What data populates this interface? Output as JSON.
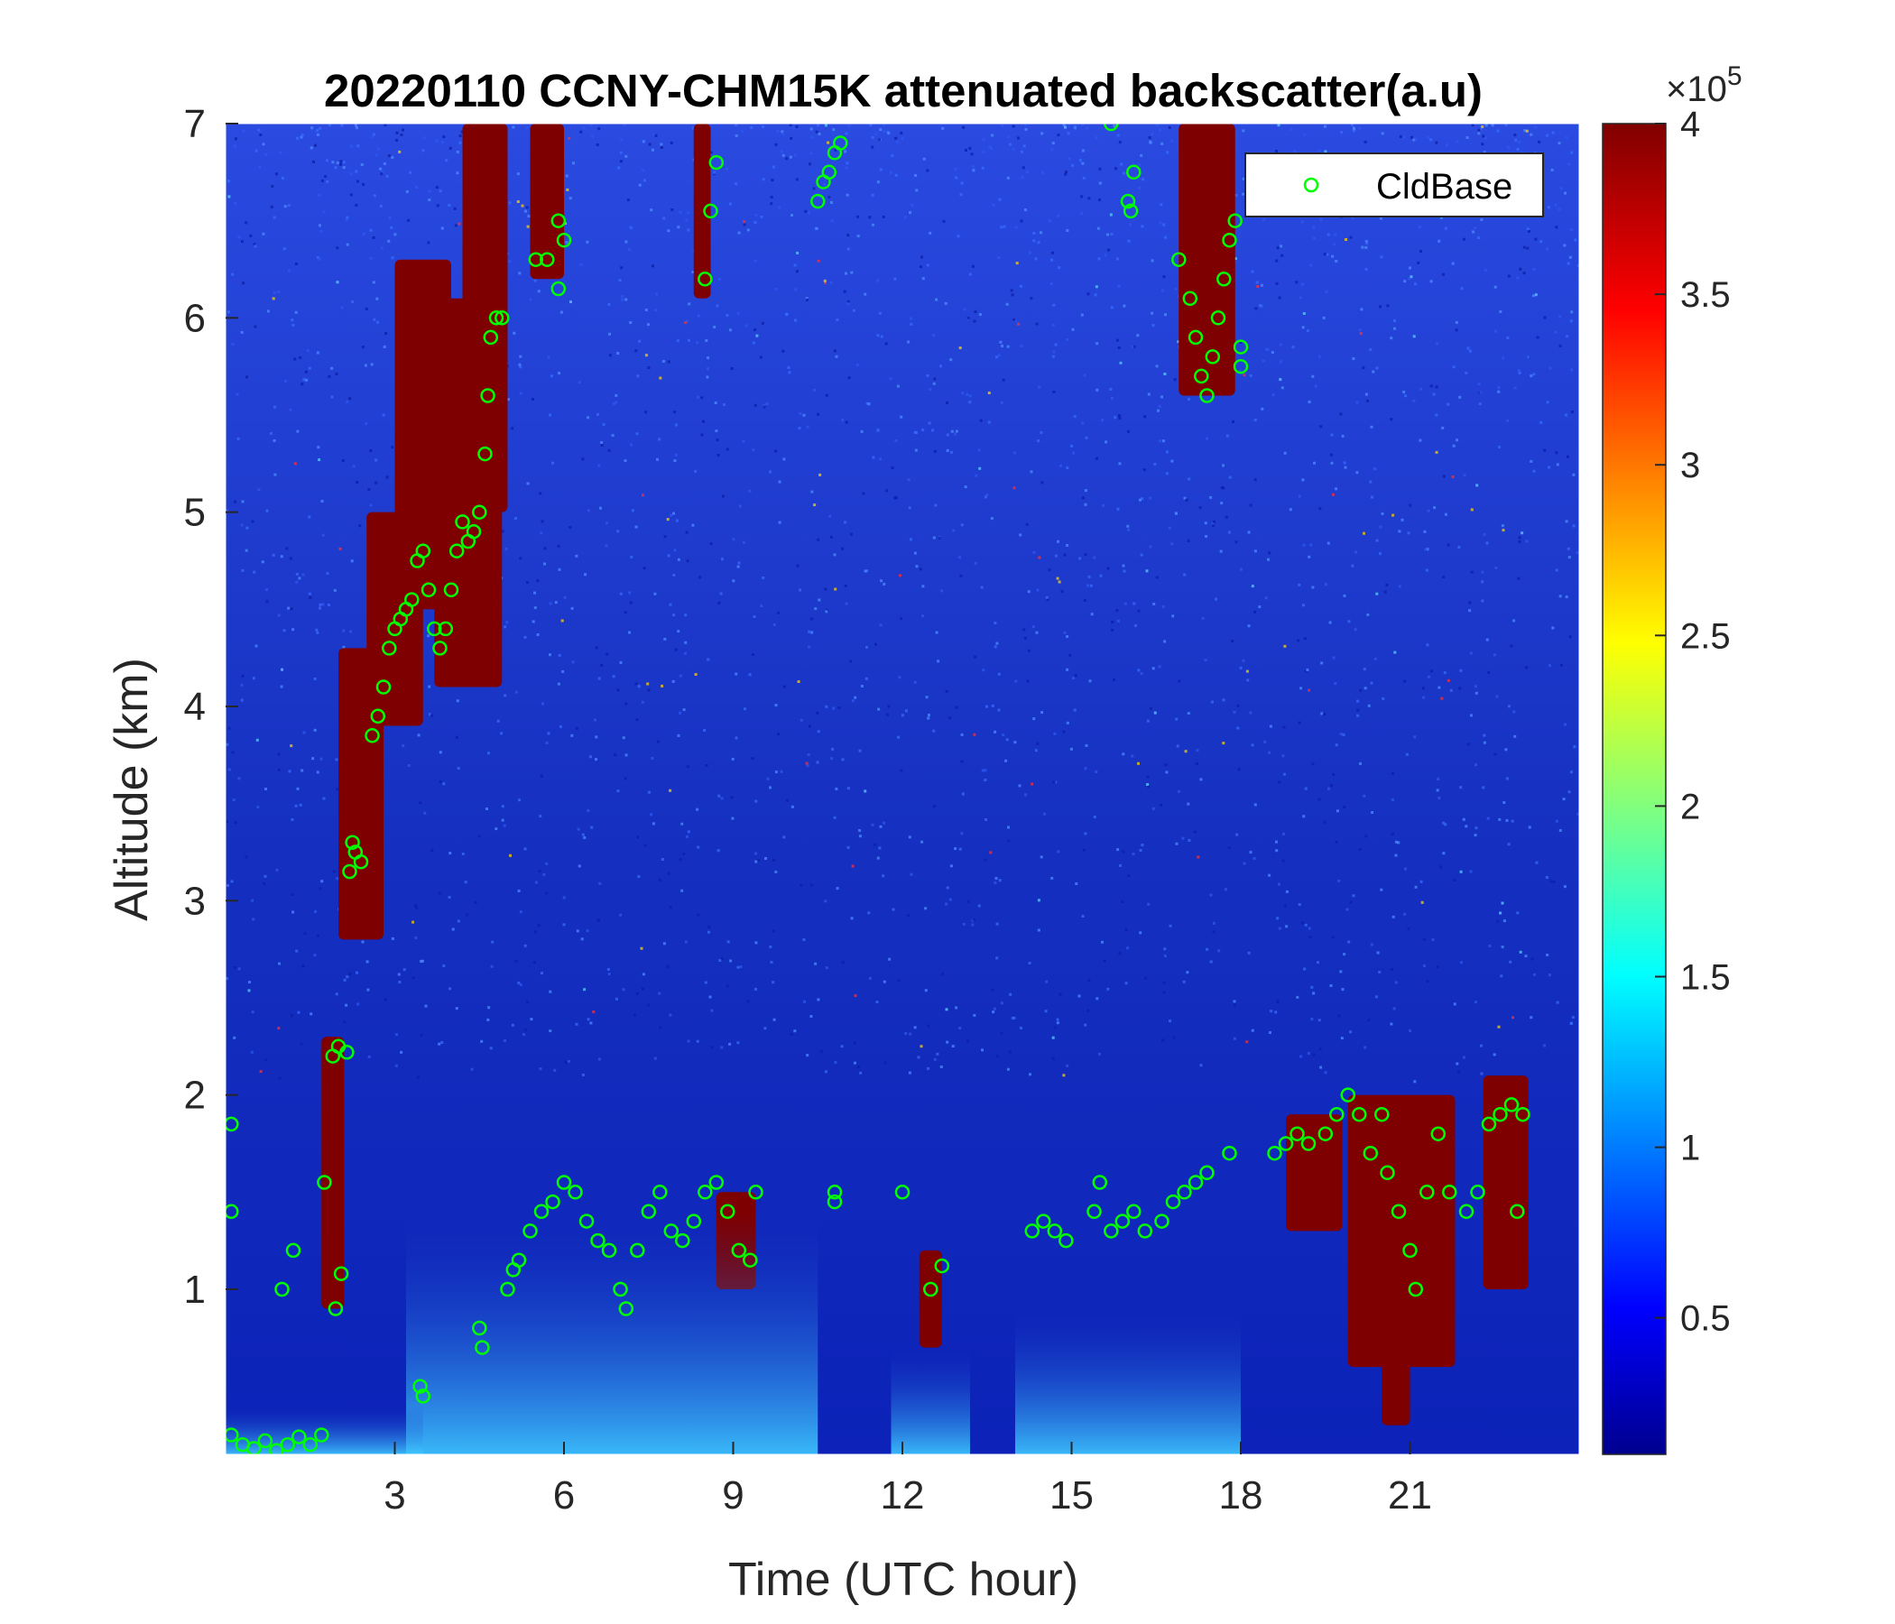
{
  "chart_data": {
    "type": "heatmap",
    "title": "20220110 CCNY-CHM15K attenuated backscatter(a.u)",
    "xlabel": "Time (UTC hour)",
    "ylabel": "Altitude (km)",
    "xlim": [
      0,
      24
    ],
    "ylim": [
      0.15,
      7
    ],
    "xticks": [
      3,
      6,
      9,
      12,
      15,
      18,
      21
    ],
    "yticks": [
      1,
      2,
      3,
      4,
      5,
      6,
      7
    ],
    "colorbar": {
      "colormap": "jet",
      "clim": [
        0.1,
        4
      ],
      "ticks": [
        "0.5",
        "1",
        "1.5",
        "2",
        "2.5",
        "3",
        "3.5",
        "4"
      ],
      "tick_values": [
        0.5,
        1,
        1.5,
        2,
        2.5,
        3,
        3.5,
        4
      ],
      "exponent_base": "×10",
      "exponent_power": "5"
    },
    "background_color": "#1530c0",
    "cloud_color": "#7f0000",
    "cloud_regions": [
      {
        "t0": 2.0,
        "t1": 2.8,
        "z0": 2.8,
        "z1": 4.3
      },
      {
        "t0": 2.5,
        "t1": 3.5,
        "z0": 3.9,
        "z1": 5.0
      },
      {
        "t0": 3.0,
        "t1": 4.0,
        "z0": 4.5,
        "z1": 6.3
      },
      {
        "t0": 3.7,
        "t1": 4.9,
        "z0": 4.1,
        "z1": 6.1
      },
      {
        "t0": 4.2,
        "t1": 5.0,
        "z0": 5.0,
        "z1": 7.0
      },
      {
        "t0": 5.4,
        "t1": 6.0,
        "z0": 6.2,
        "z1": 7.0
      },
      {
        "t0": 8.3,
        "t1": 8.6,
        "z0": 6.1,
        "z1": 7.0
      },
      {
        "t0": 1.7,
        "t1": 2.1,
        "z0": 0.9,
        "z1": 2.3
      },
      {
        "t0": 8.7,
        "t1": 9.4,
        "z0": 1.0,
        "z1": 1.5
      },
      {
        "t0": 12.3,
        "t1": 12.7,
        "z0": 0.7,
        "z1": 1.2
      },
      {
        "t0": 16.9,
        "t1": 17.9,
        "z0": 5.6,
        "z1": 7.0
      },
      {
        "t0": 18.8,
        "t1": 19.8,
        "z0": 1.3,
        "z1": 1.9
      },
      {
        "t0": 19.9,
        "t1": 21.8,
        "z0": 0.6,
        "z1": 2.0
      },
      {
        "t0": 20.5,
        "t1": 21.0,
        "z0": 0.3,
        "z1": 1.2
      },
      {
        "t0": 22.3,
        "t1": 23.1,
        "z0": 1.0,
        "z1": 2.1
      }
    ],
    "series": [
      {
        "name": "CldBase",
        "color": "#00ff00",
        "marker": "circle",
        "points": [
          [
            0.1,
            0.25
          ],
          [
            0.3,
            0.2
          ],
          [
            0.5,
            0.18
          ],
          [
            0.7,
            0.22
          ],
          [
            0.9,
            0.17
          ],
          [
            1.1,
            0.2
          ],
          [
            1.3,
            0.24
          ],
          [
            1.5,
            0.2
          ],
          [
            1.7,
            0.25
          ],
          [
            0.1,
            1.85
          ],
          [
            0.1,
            1.4
          ],
          [
            1.0,
            1.0
          ],
          [
            1.2,
            1.2
          ],
          [
            1.75,
            1.55
          ],
          [
            1.95,
            0.9
          ],
          [
            2.05,
            1.08
          ],
          [
            1.9,
            2.2
          ],
          [
            2.0,
            2.25
          ],
          [
            2.15,
            2.22
          ],
          [
            2.2,
            3.15
          ],
          [
            2.3,
            3.25
          ],
          [
            2.4,
            3.2
          ],
          [
            2.25,
            3.3
          ],
          [
            2.6,
            3.85
          ],
          [
            2.7,
            3.95
          ],
          [
            2.8,
            4.1
          ],
          [
            2.9,
            4.3
          ],
          [
            3.0,
            4.4
          ],
          [
            3.1,
            4.45
          ],
          [
            3.2,
            4.5
          ],
          [
            3.3,
            4.55
          ],
          [
            3.4,
            4.75
          ],
          [
            3.5,
            4.8
          ],
          [
            3.6,
            4.6
          ],
          [
            3.7,
            4.4
          ],
          [
            3.8,
            4.3
          ],
          [
            3.9,
            4.4
          ],
          [
            4.0,
            4.6
          ],
          [
            4.1,
            4.8
          ],
          [
            4.2,
            4.95
          ],
          [
            4.3,
            4.85
          ],
          [
            4.4,
            4.9
          ],
          [
            4.5,
            5.0
          ],
          [
            4.6,
            5.3
          ],
          [
            4.65,
            5.6
          ],
          [
            4.7,
            5.9
          ],
          [
            4.8,
            6.0
          ],
          [
            4.9,
            6.0
          ],
          [
            5.5,
            6.3
          ],
          [
            5.7,
            6.3
          ],
          [
            5.9,
            6.15
          ],
          [
            6.0,
            6.4
          ],
          [
            5.9,
            6.5
          ],
          [
            3.45,
            0.5
          ],
          [
            3.5,
            0.45
          ],
          [
            4.5,
            0.8
          ],
          [
            4.55,
            0.7
          ],
          [
            5.0,
            1.0
          ],
          [
            5.1,
            1.1
          ],
          [
            5.2,
            1.15
          ],
          [
            5.4,
            1.3
          ],
          [
            5.6,
            1.4
          ],
          [
            5.8,
            1.45
          ],
          [
            6.0,
            1.55
          ],
          [
            6.2,
            1.5
          ],
          [
            6.4,
            1.35
          ],
          [
            6.6,
            1.25
          ],
          [
            6.8,
            1.2
          ],
          [
            7.0,
            1.0
          ],
          [
            7.1,
            0.9
          ],
          [
            7.3,
            1.2
          ],
          [
            7.5,
            1.4
          ],
          [
            7.7,
            1.5
          ],
          [
            7.9,
            1.3
          ],
          [
            8.1,
            1.25
          ],
          [
            8.3,
            1.35
          ],
          [
            8.5,
            1.5
          ],
          [
            8.7,
            1.55
          ],
          [
            8.9,
            1.4
          ],
          [
            9.1,
            1.2
          ],
          [
            9.3,
            1.15
          ],
          [
            9.4,
            1.5
          ],
          [
            8.5,
            6.2
          ],
          [
            8.6,
            6.55
          ],
          [
            8.7,
            6.8
          ],
          [
            10.5,
            6.6
          ],
          [
            10.6,
            6.7
          ],
          [
            10.7,
            6.75
          ],
          [
            10.8,
            6.85
          ],
          [
            10.9,
            6.9
          ],
          [
            10.8,
            1.45
          ],
          [
            10.8,
            1.5
          ],
          [
            12.0,
            1.5
          ],
          [
            12.5,
            1.0
          ],
          [
            12.7,
            1.12
          ],
          [
            14.3,
            1.3
          ],
          [
            14.5,
            1.35
          ],
          [
            14.7,
            1.3
          ],
          [
            14.9,
            1.25
          ],
          [
            15.4,
            1.4
          ],
          [
            15.5,
            1.55
          ],
          [
            15.7,
            1.3
          ],
          [
            15.9,
            1.35
          ],
          [
            16.1,
            1.4
          ],
          [
            16.3,
            1.3
          ],
          [
            15.7,
            7.0
          ],
          [
            16.0,
            6.6
          ],
          [
            16.1,
            6.75
          ],
          [
            16.05,
            6.55
          ],
          [
            16.6,
            1.35
          ],
          [
            16.8,
            1.45
          ],
          [
            17.0,
            1.5
          ],
          [
            17.2,
            1.55
          ],
          [
            17.4,
            1.6
          ],
          [
            17.8,
            1.7
          ],
          [
            16.9,
            6.3
          ],
          [
            17.1,
            6.1
          ],
          [
            17.2,
            5.9
          ],
          [
            17.3,
            5.7
          ],
          [
            17.4,
            5.6
          ],
          [
            17.5,
            5.8
          ],
          [
            17.6,
            6.0
          ],
          [
            17.7,
            6.2
          ],
          [
            17.8,
            6.4
          ],
          [
            17.9,
            6.5
          ],
          [
            18.0,
            5.75
          ],
          [
            18.0,
            5.85
          ],
          [
            18.6,
            1.7
          ],
          [
            18.8,
            1.75
          ],
          [
            19.0,
            1.8
          ],
          [
            19.2,
            1.75
          ],
          [
            19.5,
            1.8
          ],
          [
            19.7,
            1.9
          ],
          [
            19.9,
            2.0
          ],
          [
            20.1,
            1.9
          ],
          [
            20.3,
            1.7
          ],
          [
            20.5,
            1.9
          ],
          [
            20.6,
            1.6
          ],
          [
            20.8,
            1.4
          ],
          [
            21.0,
            1.2
          ],
          [
            21.1,
            1.0
          ],
          [
            21.3,
            1.5
          ],
          [
            21.5,
            1.8
          ],
          [
            21.7,
            1.5
          ],
          [
            22.0,
            1.4
          ],
          [
            22.2,
            1.5
          ],
          [
            22.4,
            1.85
          ],
          [
            22.6,
            1.9
          ],
          [
            22.8,
            1.95
          ],
          [
            22.9,
            1.4
          ],
          [
            23.0,
            1.9
          ]
        ]
      }
    ],
    "legend": {
      "entries": [
        "CldBase"
      ],
      "position": "top-right"
    }
  }
}
